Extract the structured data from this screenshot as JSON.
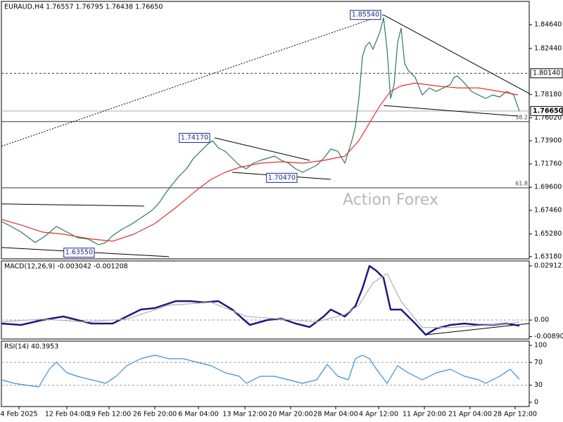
{
  "chart_data": [
    {
      "type": "line",
      "title": "EURAUD,H4  1.76557 1.76795 1.76438 1.76650",
      "watermark": "Action Forex",
      "xlim": [
        0,
        750
      ],
      "ylim": [
        1.6298,
        1.8679
      ],
      "yticks": [
        {
          "value": 1.6318,
          "label": "1.63180"
        },
        {
          "value": 1.6528,
          "label": "1.65280"
        },
        {
          "value": 1.6746,
          "label": "1.67460"
        },
        {
          "value": 1.696,
          "label": "1.69600"
        },
        {
          "value": 1.7176,
          "label": "1.71760"
        },
        {
          "value": 1.739,
          "label": "1.73900"
        },
        {
          "value": 1.7602,
          "label": "1.76020"
        },
        {
          "value": 1.7818,
          "label": "1.78180"
        },
        {
          "value": 1.8244,
          "label": "1.82440"
        },
        {
          "value": 1.8464,
          "label": "1.84640"
        }
      ],
      "levels": [
        {
          "value": 1.8014,
          "label": "1.80140",
          "style": "dashed"
        },
        {
          "value": 1.7665,
          "label": "1.76650",
          "style": "current"
        },
        {
          "value": 1.7567,
          "label": "38.2",
          "style": "fib"
        },
        {
          "value": 1.6955,
          "label": "61.8",
          "style": "fib"
        }
      ],
      "trendlines": [
        {
          "x": [
            0,
            543
          ],
          "y": [
            1.7339,
            1.8554
          ],
          "style": "dotted"
        },
        {
          "x": [
            543,
            750
          ],
          "y": [
            1.8554,
            1.7827
          ],
          "style": "solid"
        },
        {
          "x": [
            543,
            733
          ],
          "y": [
            1.7716,
            1.7619
          ],
          "style": "solid"
        },
        {
          "x": [
            303,
            438
          ],
          "y": [
            1.7417,
            1.7209
          ],
          "style": "solid"
        },
        {
          "x": [
            328,
            468
          ],
          "y": [
            1.7098,
            1.7033
          ],
          "style": "solid"
        },
        {
          "x": [
            0,
            203
          ],
          "y": [
            1.6806,
            1.6786
          ],
          "style": "solid"
        },
        {
          "x": [
            0,
            238
          ],
          "y": [
            1.6403,
            1.6318
          ],
          "style": "solid"
        }
      ],
      "annotations": [
        {
          "label": "1.85540",
          "x": 543,
          "value": 1.8554
        },
        {
          "label": "1.74170",
          "x": 300,
          "value": 1.7417
        },
        {
          "label": "1.70470",
          "x": 424,
          "value": 1.7047
        },
        {
          "label": "1.63550",
          "x": 136,
          "value": 1.6355
        }
      ],
      "series": [
        {
          "color": "#2b7a5e",
          "x": [
            0,
            10,
            28,
            48,
            63,
            78,
            93,
            108,
            123,
            138,
            148,
            158,
            173,
            183,
            198,
            213,
            223,
            233,
            243,
            253,
            263,
            273,
            283,
            293,
            300,
            308,
            318,
            328,
            338,
            348,
            358,
            368,
            378,
            388,
            398,
            408,
            418,
            428,
            438,
            448,
            458,
            468,
            478,
            488,
            498,
            503,
            508,
            513,
            518,
            523,
            528,
            538,
            543,
            548,
            553,
            558,
            563,
            568,
            573,
            578,
            588,
            598,
            608,
            618,
            628,
            638,
            643,
            648,
            658,
            668,
            678,
            688,
            698,
            708,
            718,
            728,
            736
          ],
          "values": [
            1.6643,
            1.6611,
            1.6546,
            1.6448,
            1.6513,
            1.6598,
            1.6546,
            1.6494,
            1.6481,
            1.6429,
            1.6448,
            1.6513,
            1.6578,
            1.6611,
            1.6676,
            1.6741,
            1.6806,
            1.6903,
            1.6988,
            1.7066,
            1.7131,
            1.7228,
            1.7293,
            1.7358,
            1.7391,
            1.7326,
            1.7293,
            1.7228,
            1.7163,
            1.7131,
            1.7183,
            1.7209,
            1.7228,
            1.7248,
            1.7209,
            1.7183,
            1.7131,
            1.7098,
            1.7131,
            1.7163,
            1.7228,
            1.7313,
            1.7293,
            1.7183,
            1.7391,
            1.7521,
            1.7781,
            1.8171,
            1.8269,
            1.8301,
            1.8236,
            1.8399,
            1.8529,
            1.8236,
            1.7781,
            1.7911,
            1.8301,
            1.8432,
            1.8106,
            1.8041,
            1.7976,
            1.7814,
            1.7879,
            1.7846,
            1.7879,
            1.7911,
            1.7976,
            1.7989,
            1.7924,
            1.7846,
            1.7814,
            1.7781,
            1.7814,
            1.7794,
            1.7846,
            1.7814,
            1.7665
          ]
        },
        {
          "color": "#e03030",
          "x": [
            0,
            28,
            58,
            88,
            128,
            158,
            188,
            218,
            248,
            278,
            298,
            318,
            338,
            368,
            398,
            428,
            458,
            488,
            508,
            523,
            538,
            553,
            568,
            588,
            618,
            648,
            678,
            708,
            734
          ],
          "values": [
            1.6663,
            1.6611,
            1.6546,
            1.6526,
            1.6481,
            1.6461,
            1.6526,
            1.6624,
            1.6773,
            1.6936,
            1.7033,
            1.7098,
            1.7144,
            1.7183,
            1.7196,
            1.7183,
            1.7209,
            1.7248,
            1.7391,
            1.7554,
            1.7716,
            1.7846,
            1.7898,
            1.7924,
            1.7898,
            1.7879,
            1.7879,
            1.7846,
            1.7814
          ]
        }
      ]
    },
    {
      "type": "line",
      "title": "MACD(12,26,9) -0.003042 -0.001208",
      "xlim": [
        0,
        750
      ],
      "ylim": [
        -0.0102,
        0.0318
      ],
      "yticks": [
        -0.008901,
        {
          "value": 0,
          "label": "0.00"
        },
        0.029123
      ],
      "levels": [
        0
      ],
      "trendlines": [
        {
          "x": [
            603,
            750
          ],
          "y": [
            -0.00794,
            -0.00189
          ],
          "style": "solid"
        }
      ],
      "series": [
        {
          "color": "#1a1a80",
          "x": [
            0,
            28,
            58,
            88,
            108,
            128,
            158,
            178,
            198,
            218,
            248,
            268,
            288,
            308,
            328,
            353,
            378,
            398,
            418,
            438,
            458,
            468,
            488,
            503,
            513,
            523,
            533,
            543,
            553,
            568,
            588,
            603,
            618,
            638,
            658,
            678,
            698,
            718,
            736
          ],
          "values": [
            -0.00189,
            -0.00265,
            0,
            0.00189,
            0,
            -0.00189,
            -0.00189,
            0.00189,
            0.00567,
            0.00643,
            0.01021,
            0.01021,
            0.00946,
            0.01021,
            0.00567,
            -0.00265,
            0,
            0.00076,
            -0.00189,
            -0.00378,
            0.00189,
            0.00567,
            0.00189,
            0.00756,
            0.01702,
            0.02912,
            0.02648,
            0.02269,
            0.00567,
            0.00567,
            -0.00189,
            -0.00794,
            -0.00454,
            -0.00265,
            -0.00189,
            -0.00265,
            -0.00265,
            -0.00189,
            -0.003042
          ]
        },
        {
          "color": "#b0b0b0",
          "x": [
            0,
            58,
            118,
            178,
            238,
            298,
            348,
            398,
            448,
            488,
            508,
            528,
            548,
            568,
            598,
            638,
            678,
            718,
            736
          ],
          "values": [
            -0.001,
            0.0005,
            -0.001,
            0.0005,
            0.008,
            0.0095,
            0.002,
            0.0005,
            -0.001,
            0.003,
            0.008,
            0.02,
            0.025,
            0.01,
            -0.004,
            -0.004,
            -0.003,
            -0.002,
            -0.001208
          ]
        }
      ]
    },
    {
      "type": "line",
      "title": "RSI(14) 40.3953",
      "xlim": [
        0,
        750
      ],
      "ylim": [
        -7.4,
        107.4
      ],
      "yticks": [
        0,
        30,
        70,
        100
      ],
      "levels": [
        30,
        70
      ],
      "xticks": [
        {
          "value": 25,
          "label": "4 Feb 2025"
        },
        {
          "value": 93,
          "label": "12 Feb 04:00"
        },
        {
          "value": 153,
          "label": "19 Feb 12:00"
        },
        {
          "value": 218,
          "label": "26 Feb 20:00"
        },
        {
          "value": 280,
          "label": "6 Mar 04:00"
        },
        {
          "value": 346,
          "label": "13 Mar 12:00"
        },
        {
          "value": 411,
          "label": "20 Mar 20:00"
        },
        {
          "value": 475,
          "label": "28 Mar 04:00"
        },
        {
          "value": 536,
          "label": "4 Apr 12:00"
        },
        {
          "value": 601,
          "label": "11 Apr 20:00"
        },
        {
          "value": 666,
          "label": "21 Apr 04:00"
        },
        {
          "value": 730,
          "label": "28 Apr 12:00"
        }
      ],
      "series": [
        {
          "color": "#3a8fd6",
          "x": [
            0,
            18,
            38,
            53,
            68,
            78,
            93,
            108,
            128,
            148,
            163,
            178,
            198,
            218,
            238,
            258,
            278,
            298,
            318,
            338,
            348,
            368,
            388,
            408,
            428,
            448,
            463,
            478,
            493,
            503,
            513,
            523,
            533,
            548,
            563,
            578,
            598,
            618,
            638,
            658,
            678,
            688,
            708,
            723,
            736
          ],
          "values": [
            39.5,
            33.3,
            29.6,
            27.2,
            58.0,
            70.4,
            51.9,
            45.7,
            39.5,
            33.3,
            45.7,
            64.2,
            76.5,
            82.7,
            76.5,
            76.5,
            70.4,
            64.2,
            51.9,
            45.7,
            33.3,
            45.7,
            45.7,
            39.5,
            33.3,
            39.5,
            66.7,
            45.7,
            39.5,
            76.5,
            82.7,
            76.5,
            58.0,
            33.3,
            64.2,
            51.9,
            39.5,
            51.9,
            58.0,
            45.7,
            39.5,
            33.3,
            45.7,
            58.0,
            40.4
          ]
        }
      ]
    }
  ]
}
